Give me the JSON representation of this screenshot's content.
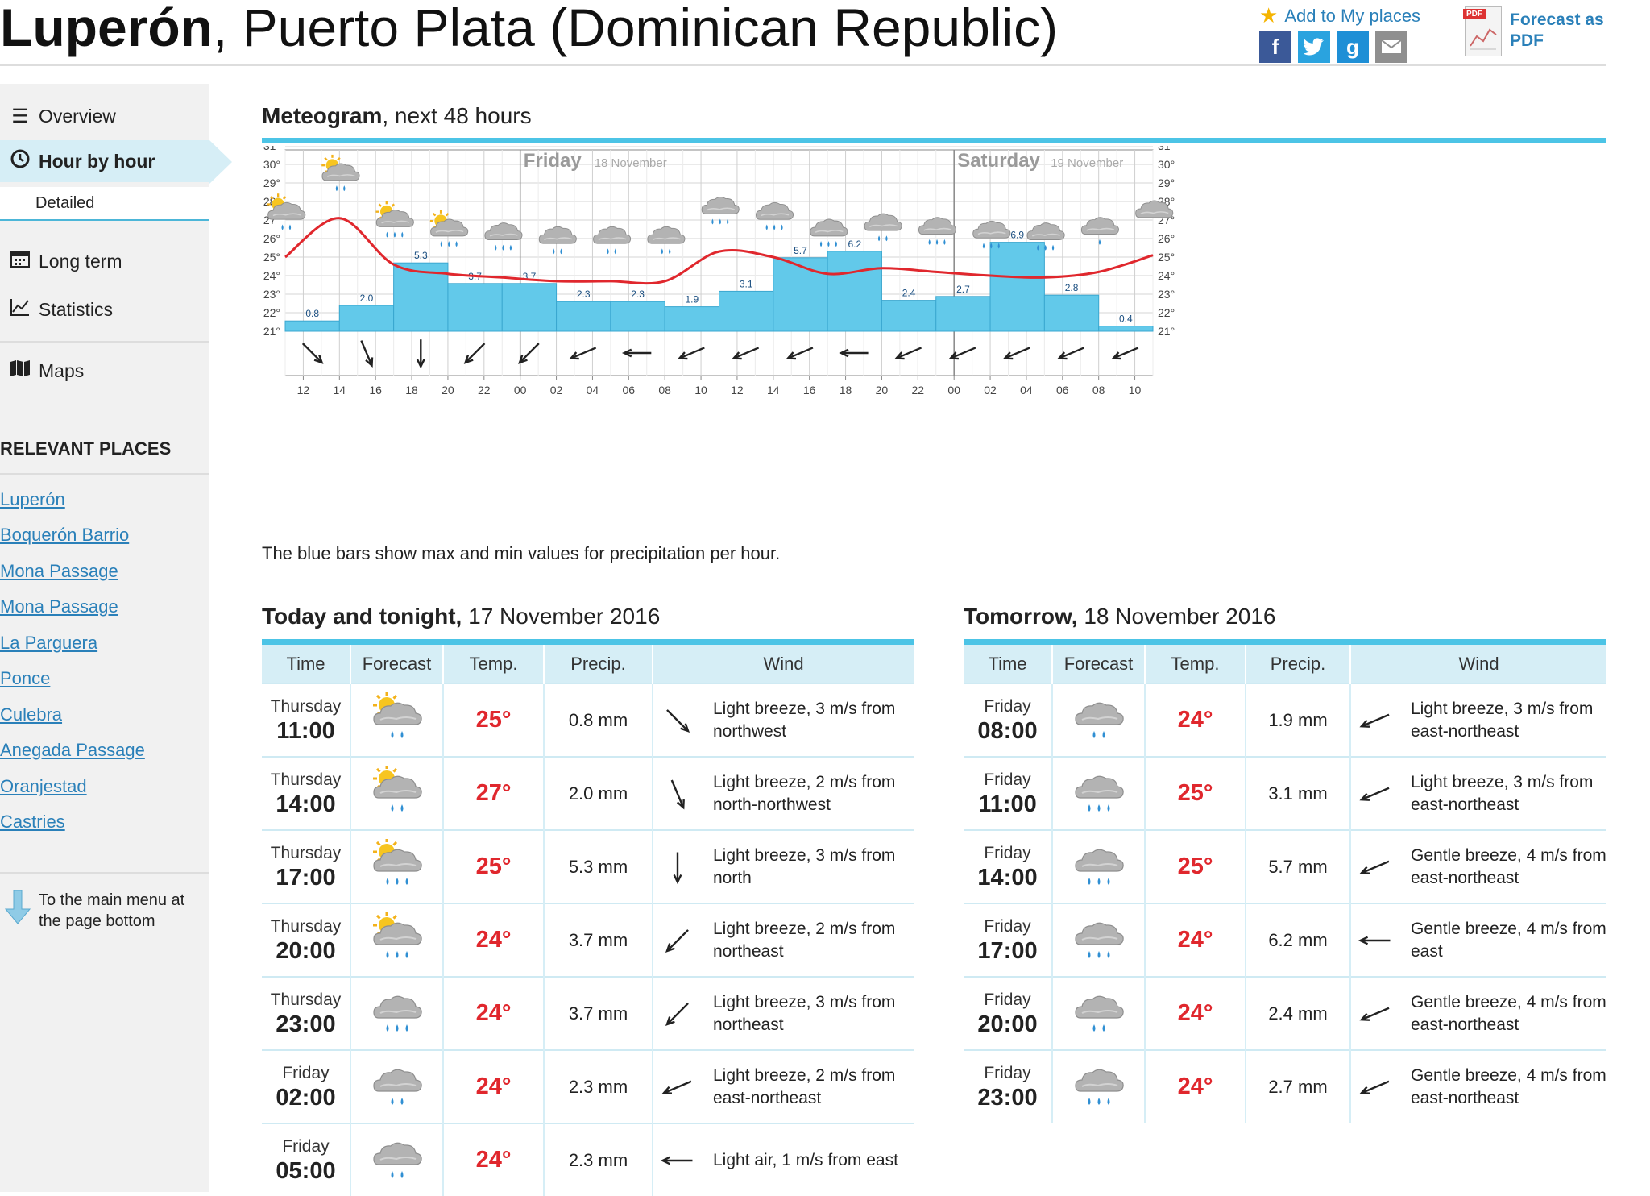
{
  "header": {
    "title_bold": "Luperón",
    "title_rest": ", Puerto Plata (Dominican Republic)",
    "add_to_places": "Add to My places",
    "forecast_pdf_line1": "Forecast as",
    "forecast_pdf_line2": "PDF",
    "pdf_tag": "PDF"
  },
  "sidebar": {
    "overview": "Overview",
    "hour_by_hour": "Hour by hour",
    "detailed": "Detailed",
    "long_term": "Long term",
    "statistics": "Statistics",
    "maps": "Maps",
    "relevant_places_heading": "RELEVANT PLACES",
    "places": [
      "Luperón",
      "Boquerón Barrio",
      "Mona Passage",
      "Mona Passage",
      "La Parguera",
      "Ponce",
      "Culebra",
      "Anegada Passage",
      "Oranjestad",
      "Castries"
    ],
    "to_main_menu": "To the main menu at the page bottom"
  },
  "meteogram": {
    "title_bold": "Meteogram",
    "title_rest": ", next 48 hours",
    "note": "The blue bars show max and min values for precipitation per hour."
  },
  "chart_data": {
    "type": "line",
    "day_labels": [
      {
        "day": "Friday",
        "date": "18 November"
      },
      {
        "day": "Saturday",
        "date": "19 November"
      }
    ],
    "y_ticks": [
      "21°",
      "22°",
      "23°",
      "24°",
      "25°",
      "26°",
      "27°",
      "28°",
      "29°",
      "30°",
      "31°"
    ],
    "ylim": [
      21,
      31
    ],
    "x_ticks": [
      "12",
      "14",
      "16",
      "18",
      "20",
      "22",
      "00",
      "02",
      "04",
      "06",
      "08",
      "10",
      "12",
      "14",
      "16",
      "18",
      "20",
      "22",
      "00",
      "02",
      "04",
      "06",
      "08",
      "10"
    ],
    "temperature_series": {
      "x_hours": [
        11,
        14,
        17,
        20,
        23,
        26,
        29,
        32,
        35,
        38,
        41,
        44,
        47,
        50,
        53,
        56,
        59
      ],
      "values": [
        25.0,
        27.1,
        24.6,
        24.1,
        23.9,
        23.7,
        23.7,
        23.7,
        25.3,
        25.0,
        24.1,
        24.4,
        24.2,
        24.0,
        23.9,
        24.2,
        25.1
      ]
    },
    "precip_bars": {
      "start_hours": [
        11,
        14,
        17,
        20,
        23,
        26,
        29,
        32,
        35,
        38,
        41,
        44,
        47,
        50,
        53,
        56
      ],
      "values": [
        0.8,
        2.0,
        5.3,
        3.7,
        3.7,
        2.3,
        2.3,
        1.9,
        3.1,
        5.7,
        6.2,
        2.4,
        2.7,
        6.9,
        2.8,
        0.4
      ],
      "labels": [
        "0.8",
        "2.0",
        "5.3",
        "3.7",
        "3.7",
        "2.3",
        "2.3",
        "1.9",
        "3.1",
        "5.7",
        "6.2",
        "2.4",
        "2.7",
        "6.9",
        "2.8",
        "0.4"
      ]
    },
    "wind_from_deg": [
      315,
      337,
      0,
      45,
      45,
      67,
      90,
      67,
      67,
      67,
      90,
      67,
      67,
      67,
      67,
      67
    ],
    "icons": [
      "partly-sunny-rain",
      "partly-sunny-rain",
      "partly-sunny-rain",
      "partly-sunny-rain",
      "cloud-rain",
      "cloud-rain",
      "cloud-rain",
      "cloud-rain",
      "cloud-rain",
      "cloud-rain",
      "cloud-rain",
      "cloud-rain",
      "cloud-rain",
      "cloud-rain",
      "cloud-rain",
      "cloud-rain",
      "cloud-rain"
    ],
    "icon_drops": [
      2,
      2,
      3,
      3,
      3,
      2,
      2,
      2,
      3,
      3,
      3,
      2,
      3,
      3,
      3,
      1,
      0
    ],
    "colors": {
      "temperature": "#e0272d",
      "precip": "#62c9ea"
    }
  },
  "today": {
    "title_bold": "Today and tonight,",
    "title_rest": " 17 November 2016",
    "columns": [
      "Time",
      "Forecast",
      "Temp.",
      "Precip.",
      "Wind"
    ],
    "rows": [
      {
        "day": "Thursday",
        "time": "11:00",
        "icon": "partly-sunny-rain-icon",
        "drops": 2,
        "temp": "25°",
        "precip": "0.8 mm",
        "wind_deg": 315,
        "wind": "Light breeze, 3 m/s from northwest"
      },
      {
        "day": "Thursday",
        "time": "14:00",
        "icon": "partly-sunny-rain-icon",
        "drops": 2,
        "temp": "27°",
        "precip": "2.0 mm",
        "wind_deg": 337,
        "wind": "Light breeze, 2 m/s from north-northwest"
      },
      {
        "day": "Thursday",
        "time": "17:00",
        "icon": "partly-sunny-rain-icon",
        "drops": 3,
        "temp": "25°",
        "precip": "5.3 mm",
        "wind_deg": 0,
        "wind": "Light breeze, 3 m/s from north"
      },
      {
        "day": "Thursday",
        "time": "20:00",
        "icon": "partly-sunny-rain-icon",
        "drops": 3,
        "temp": "24°",
        "precip": "3.7 mm",
        "wind_deg": 45,
        "wind": "Light breeze, 2 m/s from northeast"
      },
      {
        "day": "Thursday",
        "time": "23:00",
        "icon": "cloud-rain-icon",
        "drops": 3,
        "temp": "24°",
        "precip": "3.7 mm",
        "wind_deg": 45,
        "wind": "Light breeze, 3 m/s from northeast"
      },
      {
        "day": "Friday",
        "time": "02:00",
        "icon": "cloud-rain-icon",
        "drops": 2,
        "temp": "24°",
        "precip": "2.3 mm",
        "wind_deg": 67,
        "wind": "Light breeze, 2 m/s from east-northeast"
      },
      {
        "day": "Friday",
        "time": "05:00",
        "icon": "cloud-rain-icon",
        "drops": 2,
        "temp": "24°",
        "precip": "2.3 mm",
        "wind_deg": 90,
        "wind": "Light air, 1 m/s from east"
      }
    ]
  },
  "tomorrow": {
    "title_bold": "Tomorrow,",
    "title_rest": " 18 November 2016",
    "columns": [
      "Time",
      "Forecast",
      "Temp.",
      "Precip.",
      "Wind"
    ],
    "rows": [
      {
        "day": "Friday",
        "time": "08:00",
        "icon": "cloud-rain-icon",
        "drops": 2,
        "temp": "24°",
        "precip": "1.9 mm",
        "wind_deg": 67,
        "wind": "Light breeze, 3 m/s from east-northeast"
      },
      {
        "day": "Friday",
        "time": "11:00",
        "icon": "cloud-rain-icon",
        "drops": 3,
        "temp": "25°",
        "precip": "3.1 mm",
        "wind_deg": 67,
        "wind": "Light breeze, 3 m/s from east-northeast"
      },
      {
        "day": "Friday",
        "time": "14:00",
        "icon": "cloud-rain-icon",
        "drops": 3,
        "temp": "25°",
        "precip": "5.7 mm",
        "wind_deg": 67,
        "wind": "Gentle breeze, 4 m/s from east-northeast"
      },
      {
        "day": "Friday",
        "time": "17:00",
        "icon": "cloud-rain-icon",
        "drops": 3,
        "temp": "24°",
        "precip": "6.2 mm",
        "wind_deg": 90,
        "wind": "Gentle breeze, 4 m/s from east"
      },
      {
        "day": "Friday",
        "time": "20:00",
        "icon": "cloud-rain-icon",
        "drops": 2,
        "temp": "24°",
        "precip": "2.4 mm",
        "wind_deg": 67,
        "wind": "Gentle breeze, 4 m/s from east-northeast"
      },
      {
        "day": "Friday",
        "time": "23:00",
        "icon": "cloud-rain-icon",
        "drops": 3,
        "temp": "24°",
        "precip": "2.7 mm",
        "wind_deg": 67,
        "wind": "Gentle breeze, 4 m/s from east-northeast"
      }
    ]
  },
  "colors": {
    "accent": "#4cc4e6",
    "link": "#2a80b9",
    "temp": "#e0272d",
    "header_bg": "#d6eef6"
  }
}
